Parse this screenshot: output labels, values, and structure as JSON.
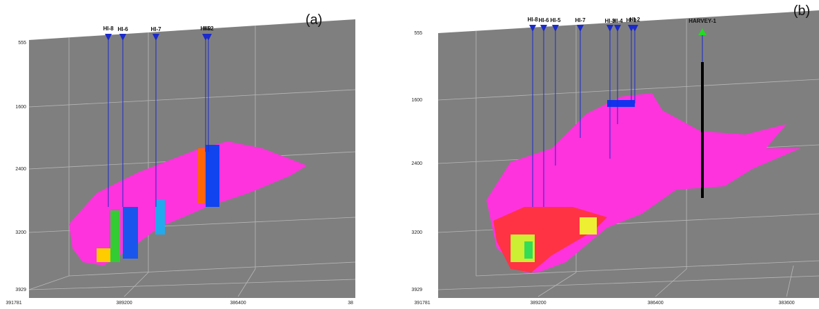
{
  "panels": [
    {
      "label": "(a)",
      "depth_ticks": [
        "555",
        "1600",
        "2400",
        "3200",
        "3929"
      ],
      "easting_ticks": [
        "391781",
        "389200",
        "386400",
        "38"
      ],
      "wells": [
        "HI-8",
        "HI-6",
        "HI-7",
        "HI-9",
        "HI-2"
      ]
    },
    {
      "label": "(b)",
      "depth_ticks": [
        "555",
        "1600",
        "2400",
        "3200",
        "3929"
      ],
      "easting_ticks": [
        "391781",
        "389200",
        "386400",
        "383600"
      ],
      "wells": [
        "HI-8",
        "HI-6",
        "HI-5",
        "HI-7",
        "HI-3",
        "HI-4",
        "HI-1",
        "HI-2"
      ],
      "highlight_well": "HARVEY-1"
    }
  ]
}
